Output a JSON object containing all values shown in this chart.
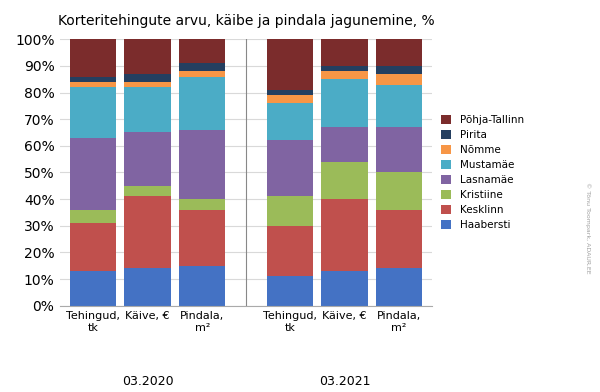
{
  "title": "Korteritehingute arvu, käibe ja pindala jagunemine, %",
  "categories": [
    "Tehingud,\ntk",
    "Käive, €",
    "Pindala,\nm²",
    "Tehingud,\ntk",
    "Käive, €",
    "Pindala,\nm²"
  ],
  "group_labels": [
    "03.2020",
    "03.2021"
  ],
  "segments": [
    "Haabersti",
    "Kesklinn",
    "Kristiine",
    "Lasnamäe",
    "Mustamäe",
    "Nõmme",
    "Pirita",
    "Põhja-Tallinn"
  ],
  "colors": [
    "#4472C4",
    "#C0504D",
    "#9BBB59",
    "#8064A2",
    "#4BACC6",
    "#F79646",
    "#243F60",
    "#7B2C2C"
  ],
  "data": [
    [
      13,
      18,
      5,
      27,
      19,
      2,
      2,
      14
    ],
    [
      14,
      27,
      4,
      20,
      17,
      2,
      3,
      13
    ],
    [
      15,
      21,
      4,
      26,
      20,
      2,
      3,
      9
    ],
    [
      11,
      19,
      11,
      21,
      14,
      3,
      2,
      19
    ],
    [
      13,
      27,
      14,
      13,
      18,
      3,
      2,
      10
    ],
    [
      14,
      22,
      14,
      17,
      16,
      4,
      3,
      10
    ]
  ],
  "ylim": [
    0,
    100
  ],
  "background_color": "#FFFFFF",
  "grid_color": "#D9D9D9"
}
